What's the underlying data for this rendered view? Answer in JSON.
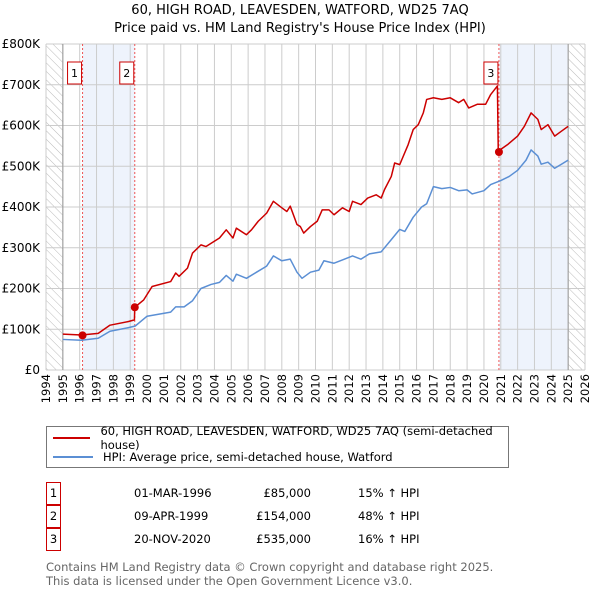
{
  "chart_data": {
    "type": "line",
    "title": "60, HIGH ROAD, LEAVESDEN, WATFORD, WD25 7AQ",
    "subtitle": "Price paid vs. HM Land Registry's House Price Index (HPI)",
    "xlim": [
      1994,
      2026
    ],
    "ylim": [
      0,
      800000
    ],
    "x_ticks": [
      "1994",
      "1995",
      "1996",
      "1997",
      "1998",
      "1999",
      "2000",
      "2001",
      "2002",
      "2003",
      "2004",
      "2005",
      "2006",
      "2007",
      "2008",
      "2009",
      "2010",
      "2011",
      "2012",
      "2013",
      "2014",
      "2015",
      "2016",
      "2017",
      "2018",
      "2019",
      "2020",
      "2021",
      "2022",
      "2023",
      "2024",
      "2025",
      "2026"
    ],
    "y_ticks": [
      {
        "v": 0,
        "label": "£0"
      },
      {
        "v": 100000,
        "label": "£100K"
      },
      {
        "v": 200000,
        "label": "£200K"
      },
      {
        "v": 300000,
        "label": "£300K"
      },
      {
        "v": 400000,
        "label": "£400K"
      },
      {
        "v": 500000,
        "label": "£500K"
      },
      {
        "v": 600000,
        "label": "£600K"
      },
      {
        "v": 700000,
        "label": "£700K"
      },
      {
        "v": 800000,
        "label": "£800K"
      }
    ],
    "grid": true,
    "series": [
      {
        "name": "60, HIGH ROAD, LEAVESDEN, WATFORD, WD25 7AQ (semi-detached house)",
        "color": "#cc0000",
        "points": [
          [
            1995.0,
            88
          ],
          [
            1996.1,
            86
          ],
          [
            1997.1,
            90
          ],
          [
            1997.8,
            110
          ],
          [
            1998.9,
            119
          ],
          [
            1999.25,
            123
          ],
          [
            1999.27,
            154
          ],
          [
            1999.8,
            172
          ],
          [
            2000.3,
            205
          ],
          [
            2001.4,
            217
          ],
          [
            2001.7,
            238
          ],
          [
            2001.9,
            230
          ],
          [
            2002.4,
            250
          ],
          [
            2002.7,
            287
          ],
          [
            2003.2,
            307
          ],
          [
            2003.5,
            303
          ],
          [
            2004.3,
            324
          ],
          [
            2004.7,
            344
          ],
          [
            2005.1,
            324
          ],
          [
            2005.3,
            348
          ],
          [
            2005.9,
            332
          ],
          [
            2006.2,
            344
          ],
          [
            2006.6,
            365
          ],
          [
            2007.1,
            385
          ],
          [
            2007.5,
            414
          ],
          [
            2008.0,
            398
          ],
          [
            2008.3,
            389
          ],
          [
            2008.5,
            402
          ],
          [
            2008.9,
            357
          ],
          [
            2009.1,
            352
          ],
          [
            2009.3,
            336
          ],
          [
            2009.7,
            352
          ],
          [
            2010.1,
            365
          ],
          [
            2010.4,
            393
          ],
          [
            2010.8,
            393
          ],
          [
            2011.1,
            381
          ],
          [
            2011.6,
            398
          ],
          [
            2012.0,
            389
          ],
          [
            2012.2,
            414
          ],
          [
            2012.7,
            406
          ],
          [
            2013.1,
            422
          ],
          [
            2013.6,
            430
          ],
          [
            2013.9,
            422
          ],
          [
            2014.1,
            443
          ],
          [
            2014.5,
            475
          ],
          [
            2014.7,
            508
          ],
          [
            2015.0,
            504
          ],
          [
            2015.5,
            553
          ],
          [
            2015.8,
            590
          ],
          [
            2016.1,
            602
          ],
          [
            2016.4,
            631
          ],
          [
            2016.6,
            664
          ],
          [
            2017.0,
            668
          ],
          [
            2017.5,
            664
          ],
          [
            2018.0,
            668
          ],
          [
            2018.5,
            656
          ],
          [
            2018.8,
            664
          ],
          [
            2019.1,
            643
          ],
          [
            2019.6,
            652
          ],
          [
            2020.1,
            652
          ],
          [
            2020.4,
            676
          ],
          [
            2020.8,
            697
          ],
          [
            2020.85,
            537
          ],
          [
            2021.4,
            553
          ],
          [
            2022.0,
            574
          ],
          [
            2022.4,
            598
          ],
          [
            2022.8,
            631
          ],
          [
            2023.2,
            615
          ],
          [
            2023.4,
            590
          ],
          [
            2023.8,
            602
          ],
          [
            2024.2,
            574
          ],
          [
            2024.6,
            586
          ],
          [
            2025.0,
            598
          ]
        ]
      },
      {
        "name": "HPI: Average price, semi-detached house, Watford",
        "color": "#5b8fd4",
        "points": [
          [
            1995.0,
            75
          ],
          [
            1996.1,
            73
          ],
          [
            1997.1,
            78
          ],
          [
            1997.8,
            95
          ],
          [
            1998.9,
            104
          ],
          [
            1999.3,
            108
          ],
          [
            2000.0,
            132
          ],
          [
            2001.4,
            142
          ],
          [
            2001.7,
            155
          ],
          [
            2002.2,
            155
          ],
          [
            2002.7,
            170
          ],
          [
            2003.2,
            200
          ],
          [
            2003.8,
            210
          ],
          [
            2004.3,
            215
          ],
          [
            2004.7,
            232
          ],
          [
            2005.1,
            218
          ],
          [
            2005.3,
            235
          ],
          [
            2005.9,
            225
          ],
          [
            2006.5,
            240
          ],
          [
            2007.1,
            255
          ],
          [
            2007.5,
            280
          ],
          [
            2008.0,
            268
          ],
          [
            2008.5,
            272
          ],
          [
            2008.9,
            240
          ],
          [
            2009.2,
            225
          ],
          [
            2009.7,
            240
          ],
          [
            2010.2,
            245
          ],
          [
            2010.5,
            268
          ],
          [
            2011.1,
            262
          ],
          [
            2011.6,
            270
          ],
          [
            2012.2,
            280
          ],
          [
            2012.7,
            272
          ],
          [
            2013.2,
            285
          ],
          [
            2013.9,
            290
          ],
          [
            2014.5,
            320
          ],
          [
            2015.0,
            345
          ],
          [
            2015.3,
            340
          ],
          [
            2015.8,
            375
          ],
          [
            2016.3,
            400
          ],
          [
            2016.6,
            408
          ],
          [
            2017.0,
            450
          ],
          [
            2017.5,
            445
          ],
          [
            2018.0,
            448
          ],
          [
            2018.5,
            440
          ],
          [
            2019.0,
            442
          ],
          [
            2019.3,
            432
          ],
          [
            2020.0,
            440
          ],
          [
            2020.4,
            455
          ],
          [
            2021.0,
            465
          ],
          [
            2021.5,
            475
          ],
          [
            2022.0,
            490
          ],
          [
            2022.5,
            515
          ],
          [
            2022.8,
            540
          ],
          [
            2023.2,
            525
          ],
          [
            2023.4,
            505
          ],
          [
            2023.8,
            510
          ],
          [
            2024.2,
            495
          ],
          [
            2024.6,
            505
          ],
          [
            2025.0,
            515
          ]
        ]
      }
    ],
    "units_note": "series values in £ thousands",
    "sales": [
      {
        "label": "1",
        "x": 1996.17,
        "y": 85,
        "date": "01-MAR-1996",
        "price": "£85,000",
        "hpi": "15% ↑ HPI"
      },
      {
        "label": "2",
        "x": 1999.27,
        "y": 154,
        "date": "09-APR-1999",
        "price": "£154,000",
        "hpi": "48% ↑ HPI"
      },
      {
        "label": "3",
        "x": 2020.89,
        "y": 535,
        "date": "20-NOV-2020",
        "price": "£535,000",
        "hpi": "16% ↑ HPI"
      }
    ],
    "shaded_ranges": [
      [
        1996.17,
        1999.27
      ],
      [
        2020.89,
        2025.0
      ]
    ],
    "hatched_ranges": [
      [
        1994,
        1995
      ],
      [
        2025,
        2026
      ]
    ],
    "legend_position": "below"
  },
  "footer": {
    "line1": "Contains HM Land Registry data © Crown copyright and database right 2025.",
    "line2": "This data is licensed under the Open Government Licence v3.0."
  }
}
